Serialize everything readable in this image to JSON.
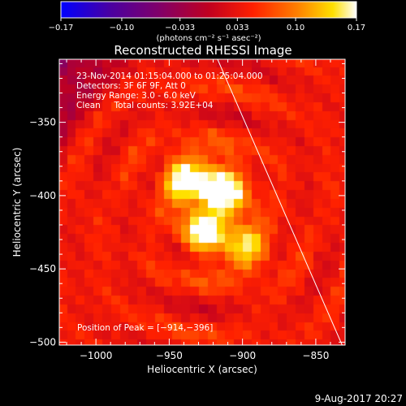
{
  "chart_data": {
    "type": "heatmap",
    "title": "Reconstructed RHESSI Image",
    "xlabel": "Heliocentric X (arcsec)",
    "ylabel": "Heliocentric Y (arcsec)",
    "xlim": [
      -1025,
      -830
    ],
    "ylim": [
      -502,
      -307
    ],
    "x_ticks": [
      -1000,
      -950,
      -900,
      -850
    ],
    "y_ticks": [
      -350,
      -400,
      -450,
      -500
    ],
    "x_tick_labels": [
      "−1000",
      "−950",
      "−900",
      "−850"
    ],
    "y_tick_labels": [
      "−350",
      "−400",
      "−450",
      "−500"
    ],
    "colorbar": {
      "range": [
        -0.17,
        0.17
      ],
      "ticks": [
        -0.17,
        -0.1,
        -0.033,
        0.033,
        0.1,
        0.17
      ],
      "tick_labels": [
        "−0.17",
        "−0.10",
        "−0.033",
        "0.033",
        "0.10",
        "0.17"
      ],
      "unit_label": "(photons cm⁻² s⁻¹ asec⁻²)"
    },
    "annotations": {
      "line1": "23-Nov-2014 01:15:04.000 to 01:25:04.000",
      "line2": "Detectors: 3F 6F 9F, Att 0",
      "line3": "Energy Range: 3.0 - 6.0 keV",
      "line4": "Clean     Total counts: 3.92E+04",
      "peak": "Position of Peak = [−914,−396]"
    },
    "peak": [
      -914,
      -396
    ],
    "limb_line": [
      [
        -917,
        -307
      ],
      [
        -832,
        -502
      ]
    ],
    "sources": [
      {
        "x": -914,
        "y": -396,
        "amplitude": 1.0
      },
      {
        "x": -938,
        "y": -389,
        "amplitude": 0.85
      },
      {
        "x": -925,
        "y": -425,
        "amplitude": 0.75
      },
      {
        "x": -898,
        "y": -435,
        "amplitude": 0.6
      }
    ]
  },
  "footer": {
    "date": "9-Aug-2017 20:27"
  },
  "colors": {
    "background": "#000000",
    "text": "#ffffff",
    "colormap": [
      "#0000ff",
      "#4b0082",
      "#800080",
      "#b0002a",
      "#ff0000",
      "#ff8000",
      "#ffff00",
      "#ffffff"
    ]
  }
}
